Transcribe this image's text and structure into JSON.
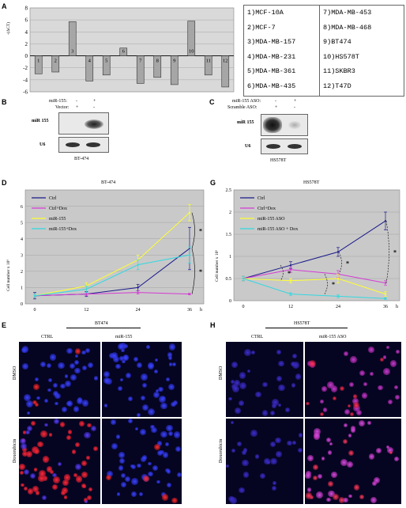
{
  "panels": {
    "A": "A",
    "B": "B",
    "C": "C",
    "D": "D",
    "E": "E",
    "G": "G",
    "H": "H"
  },
  "panelA": {
    "ylabel": "-(ΔCT)",
    "legend": [
      [
        "1)MCF-10A",
        "7)MDA-MB-453"
      ],
      [
        "2)MCF-7",
        "8)MDA-MB-468"
      ],
      [
        "3)MDA-MB-157",
        "9)BT474"
      ],
      [
        "4)MDA-MB-231",
        "10)HS578T"
      ],
      [
        "5)MDA-MB-361",
        "11)SKBR3"
      ],
      [
        "6)MDA-MB-435",
        "12)T47D"
      ]
    ]
  },
  "panelB": {
    "row1_label": "miR-155:",
    "row1_values": [
      "-",
      "+"
    ],
    "row2_label": "Vector:",
    "row2_values": [
      "+",
      "-"
    ],
    "band1": "miR 155",
    "band2": "U6",
    "caption": "BT-474"
  },
  "panelC": {
    "row1_label": "miR-155 ASO:",
    "row1_values": [
      "-",
      "+"
    ],
    "row2_label": "Scramble ASO:",
    "row2_values": [
      "+",
      "-"
    ],
    "band1": "miR 155",
    "band2": "U6",
    "caption": "HS578T"
  },
  "panelD": {
    "title": "BT-474",
    "ylabel": "Cell number x 10⁶",
    "xunit": "h",
    "star": "*"
  },
  "panelG": {
    "title": "HS578T",
    "ylabel": "Cell number x 10⁶",
    "xunit": "h",
    "star": "*"
  },
  "panelE": {
    "header": "BT474",
    "col1": "CTRL",
    "col2": "miR-155",
    "row1": "DMSO",
    "row2": "Doxorubicin"
  },
  "panelH": {
    "header": "HS578T",
    "col1": "CTRL",
    "col2": "miR-155 ASO",
    "row1": "DMSO",
    "row2": "Doxorubicin"
  },
  "chart_data": [
    {
      "type": "bar",
      "categories": [
        "1",
        "2",
        "3",
        "4",
        "5",
        "6",
        "7",
        "8",
        "9",
        "10",
        "11",
        "12"
      ],
      "values": [
        -3.0,
        -2.7,
        5.7,
        -4.2,
        -3.2,
        1.3,
        -4.6,
        -3.6,
        -4.8,
        5.8,
        -3.2,
        -5.2
      ],
      "title": "",
      "xlabel": "",
      "ylabel": "-(ΔCT)",
      "ylim": [
        -6,
        8
      ],
      "yticks": [
        -6,
        -4,
        -2,
        0,
        2,
        4,
        6,
        8
      ],
      "grid": true
    },
    {
      "type": "line",
      "title": "BT-474",
      "xlabel": "h",
      "ylabel": "Cell number x 10⁶",
      "x": [
        0,
        12,
        24,
        36
      ],
      "ylim": [
        0,
        7
      ],
      "yticks": [
        0,
        1,
        2,
        3,
        4,
        5,
        6
      ],
      "legend_position": "top-left",
      "series": [
        {
          "name": "Ctrl",
          "color": "#1a1a8c",
          "values": [
            0.5,
            0.6,
            1.0,
            3.4
          ]
        },
        {
          "name": "Ctrl+Dox",
          "color": "#d43bd4",
          "values": [
            0.5,
            0.6,
            0.7,
            0.6
          ]
        },
        {
          "name": "miR-155",
          "color": "#ffff33",
          "values": [
            0.5,
            1.1,
            2.7,
            5.6
          ]
        },
        {
          "name": "miR-155+Dox",
          "color": "#33d8e0",
          "values": [
            0.5,
            0.9,
            2.4,
            3.0
          ]
        }
      ]
    },
    {
      "type": "line",
      "title": "HS578T",
      "xlabel": "h",
      "ylabel": "Cell number x 10⁶",
      "x": [
        0,
        12,
        24,
        36
      ],
      "ylim": [
        0,
        2.5
      ],
      "yticks": [
        0,
        0.5,
        1,
        1.5,
        2,
        2.5
      ],
      "legend_position": "top-left",
      "series": [
        {
          "name": "Ctrl",
          "color": "#1a1a8c",
          "values": [
            0.5,
            0.8,
            1.1,
            1.8
          ]
        },
        {
          "name": "Ctrl+Dox",
          "color": "#d43bd4",
          "values": [
            0.5,
            0.7,
            0.6,
            0.4
          ]
        },
        {
          "name": "miR-155 ASO",
          "color": "#ffff33",
          "values": [
            0.5,
            0.45,
            0.5,
            0.15
          ]
        },
        {
          "name": "miR-155 ASO + Dox",
          "color": "#33d8e0",
          "values": [
            0.5,
            0.15,
            0.1,
            0.05
          ]
        }
      ]
    }
  ]
}
